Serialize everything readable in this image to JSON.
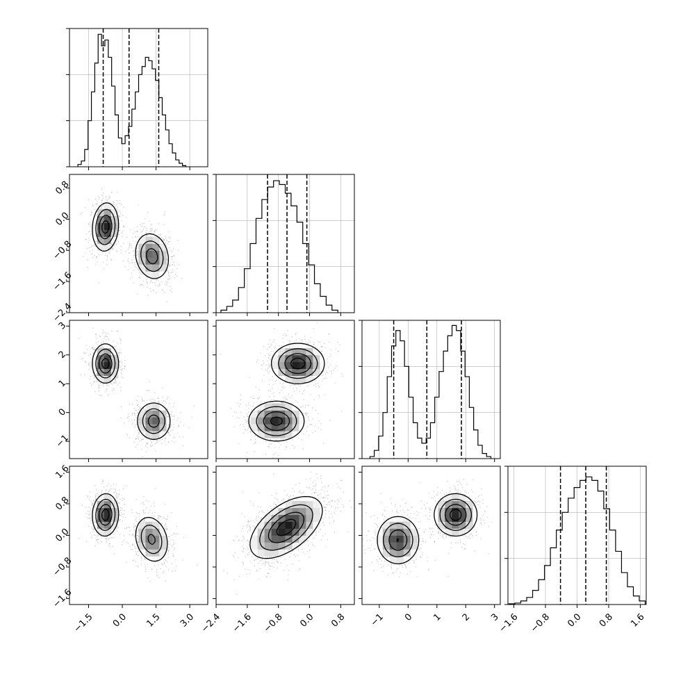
{
  "chart_data": {
    "type": "corner",
    "dimensions": 4,
    "grid": true,
    "style": {
      "color": "#000000",
      "scatter_color": "#9a9a9a",
      "fill_color": "#808080",
      "grid_color": "#b0b0b0"
    },
    "axes": [
      {
        "range": [
          -2.35,
          3.8
        ],
        "ticks": [
          -1.5,
          0.0,
          1.5,
          3.0
        ],
        "tick_labels": [
          "−1.5",
          "0.0",
          "1.5",
          "3.0"
        ]
      },
      {
        "range": [
          -2.4,
          1.15
        ],
        "ticks": [
          -2.4,
          -1.6,
          -0.8,
          0.0,
          0.8
        ],
        "tick_labels": [
          "−2.4",
          "−1.6",
          "−0.8",
          "0.0",
          "0.8"
        ]
      },
      {
        "range": [
          -1.6,
          3.2
        ],
        "ticks": [
          -1,
          0,
          1,
          2,
          3
        ],
        "tick_labels": [
          "−1",
          "0",
          "1",
          "2",
          "3"
        ]
      },
      {
        "range": [
          -1.75,
          1.75
        ],
        "ticks": [
          -1.6,
          -0.8,
          0.0,
          0.8,
          1.6
        ],
        "tick_labels": [
          "−1.6",
          "−0.8",
          "0.0",
          "0.8",
          "1.6"
        ]
      }
    ],
    "diagonal": [
      {
        "quantiles": [
          -0.85,
          0.3,
          1.62
        ],
        "hist_max": 1.2,
        "hist": [
          [
            -1.9,
            0.02
          ],
          [
            -1.75,
            0.05
          ],
          [
            -1.6,
            0.15
          ],
          [
            -1.45,
            0.4
          ],
          [
            -1.3,
            0.65
          ],
          [
            -1.15,
            0.9
          ],
          [
            -1.0,
            1.15
          ],
          [
            -0.85,
            1.05
          ],
          [
            -0.7,
            1.1
          ],
          [
            -0.55,
            0.95
          ],
          [
            -0.4,
            0.7
          ],
          [
            -0.25,
            0.45
          ],
          [
            -0.1,
            0.25
          ],
          [
            0.05,
            0.2
          ],
          [
            0.2,
            0.27
          ],
          [
            0.35,
            0.35
          ],
          [
            0.5,
            0.5
          ],
          [
            0.65,
            0.65
          ],
          [
            0.8,
            0.8
          ],
          [
            0.95,
            0.87
          ],
          [
            1.1,
            0.95
          ],
          [
            1.25,
            0.92
          ],
          [
            1.4,
            0.85
          ],
          [
            1.55,
            0.75
          ],
          [
            1.7,
            0.6
          ],
          [
            1.85,
            0.45
          ],
          [
            2.0,
            0.32
          ],
          [
            2.15,
            0.2
          ],
          [
            2.3,
            0.12
          ],
          [
            2.45,
            0.06
          ],
          [
            2.6,
            0.03
          ],
          [
            2.75,
            0.01
          ]
        ]
      },
      {
        "quantiles": [
          -1.08,
          -0.58,
          -0.07
        ],
        "hist_max": 1.1,
        "hist": [
          [
            -2.2,
            0.02
          ],
          [
            -2.05,
            0.05
          ],
          [
            -1.9,
            0.1
          ],
          [
            -1.75,
            0.2
          ],
          [
            -1.6,
            0.35
          ],
          [
            -1.45,
            0.55
          ],
          [
            -1.3,
            0.75
          ],
          [
            -1.15,
            0.9
          ],
          [
            -1.0,
            1.0
          ],
          [
            -0.85,
            1.05
          ],
          [
            -0.7,
            1.02
          ],
          [
            -0.55,
            0.95
          ],
          [
            -0.4,
            0.85
          ],
          [
            -0.25,
            0.72
          ],
          [
            -0.1,
            0.55
          ],
          [
            0.05,
            0.38
          ],
          [
            0.2,
            0.23
          ],
          [
            0.35,
            0.13
          ],
          [
            0.5,
            0.06
          ],
          [
            0.65,
            0.02
          ]
        ]
      },
      {
        "quantiles": [
          -0.5,
          0.65,
          1.85
        ],
        "hist_max": 1.35,
        "hist": [
          [
            -1.25,
            0.02
          ],
          [
            -1.1,
            0.08
          ],
          [
            -0.95,
            0.22
          ],
          [
            -0.8,
            0.45
          ],
          [
            -0.65,
            0.8
          ],
          [
            -0.5,
            1.1
          ],
          [
            -0.35,
            1.25
          ],
          [
            -0.2,
            1.15
          ],
          [
            -0.05,
            0.9
          ],
          [
            0.1,
            0.6
          ],
          [
            0.25,
            0.35
          ],
          [
            0.4,
            0.2
          ],
          [
            0.55,
            0.15
          ],
          [
            0.7,
            0.2
          ],
          [
            0.85,
            0.35
          ],
          [
            1.0,
            0.6
          ],
          [
            1.15,
            0.85
          ],
          [
            1.3,
            1.05
          ],
          [
            1.45,
            1.2
          ],
          [
            1.6,
            1.3
          ],
          [
            1.75,
            1.25
          ],
          [
            1.9,
            1.05
          ],
          [
            2.05,
            0.8
          ],
          [
            2.2,
            0.5
          ],
          [
            2.35,
            0.28
          ],
          [
            2.5,
            0.13
          ],
          [
            2.65,
            0.05
          ],
          [
            2.8,
            0.02
          ]
        ]
      },
      {
        "quantiles": [
          -0.42,
          0.22,
          0.74
        ],
        "hist_max": 1.95,
        "hist": [
          [
            -1.65,
            0.01
          ],
          [
            -1.5,
            0.02
          ],
          [
            -1.35,
            0.05
          ],
          [
            -1.2,
            0.1
          ],
          [
            -1.05,
            0.2
          ],
          [
            -0.9,
            0.35
          ],
          [
            -0.75,
            0.55
          ],
          [
            -0.6,
            0.8
          ],
          [
            -0.45,
            1.05
          ],
          [
            -0.3,
            1.3
          ],
          [
            -0.15,
            1.5
          ],
          [
            0.0,
            1.65
          ],
          [
            0.15,
            1.75
          ],
          [
            0.3,
            1.8
          ],
          [
            0.45,
            1.75
          ],
          [
            0.6,
            1.6
          ],
          [
            0.75,
            1.35
          ],
          [
            0.9,
            1.05
          ],
          [
            1.05,
            0.75
          ],
          [
            1.2,
            0.45
          ],
          [
            1.35,
            0.25
          ],
          [
            1.5,
            0.12
          ],
          [
            1.65,
            0.05
          ]
        ]
      }
    ],
    "blobs": [
      {
        "row": 1,
        "col": 0,
        "comps": [
          {
            "mx": -0.75,
            "my": -0.2,
            "sx": 0.28,
            "sy": 0.3,
            "rho": 0.1,
            "w": 0.5
          },
          {
            "mx": 1.32,
            "my": -0.95,
            "sx": 0.38,
            "sy": 0.3,
            "rho": -0.15,
            "w": 0.5
          }
        ]
      },
      {
        "row": 2,
        "col": 0,
        "comps": [
          {
            "mx": -0.75,
            "my": 1.7,
            "sx": 0.28,
            "sy": 0.33,
            "rho": 0.0,
            "w": 0.5
          },
          {
            "mx": 1.4,
            "my": -0.3,
            "sx": 0.38,
            "sy": 0.33,
            "rho": 0.0,
            "w": 0.5
          }
        ]
      },
      {
        "row": 2,
        "col": 1,
        "comps": [
          {
            "mx": -0.3,
            "my": 1.7,
            "sx": 0.33,
            "sy": 0.34,
            "rho": 0.0,
            "w": 0.5
          },
          {
            "mx": -0.85,
            "my": -0.3,
            "sx": 0.35,
            "sy": 0.34,
            "rho": 0.0,
            "w": 0.5
          }
        ]
      },
      {
        "row": 3,
        "col": 0,
        "comps": [
          {
            "mx": -0.75,
            "my": 0.52,
            "sx": 0.28,
            "sy": 0.26,
            "rho": 0.05,
            "w": 0.5
          },
          {
            "mx": 1.3,
            "my": -0.1,
            "sx": 0.38,
            "sy": 0.3,
            "rho": -0.2,
            "w": 0.5
          }
        ]
      },
      {
        "row": 3,
        "col": 1,
        "comps": [
          {
            "mx": -0.6,
            "my": 0.2,
            "sx": 0.45,
            "sy": 0.38,
            "rho": 0.55,
            "w": 1.0
          }
        ]
      },
      {
        "row": 3,
        "col": 2,
        "comps": [
          {
            "mx": 1.65,
            "my": 0.52,
            "sx": 0.36,
            "sy": 0.26,
            "rho": 0.0,
            "w": 0.5
          },
          {
            "mx": -0.35,
            "my": -0.12,
            "sx": 0.36,
            "sy": 0.3,
            "rho": 0.0,
            "w": 0.5
          }
        ]
      }
    ]
  }
}
